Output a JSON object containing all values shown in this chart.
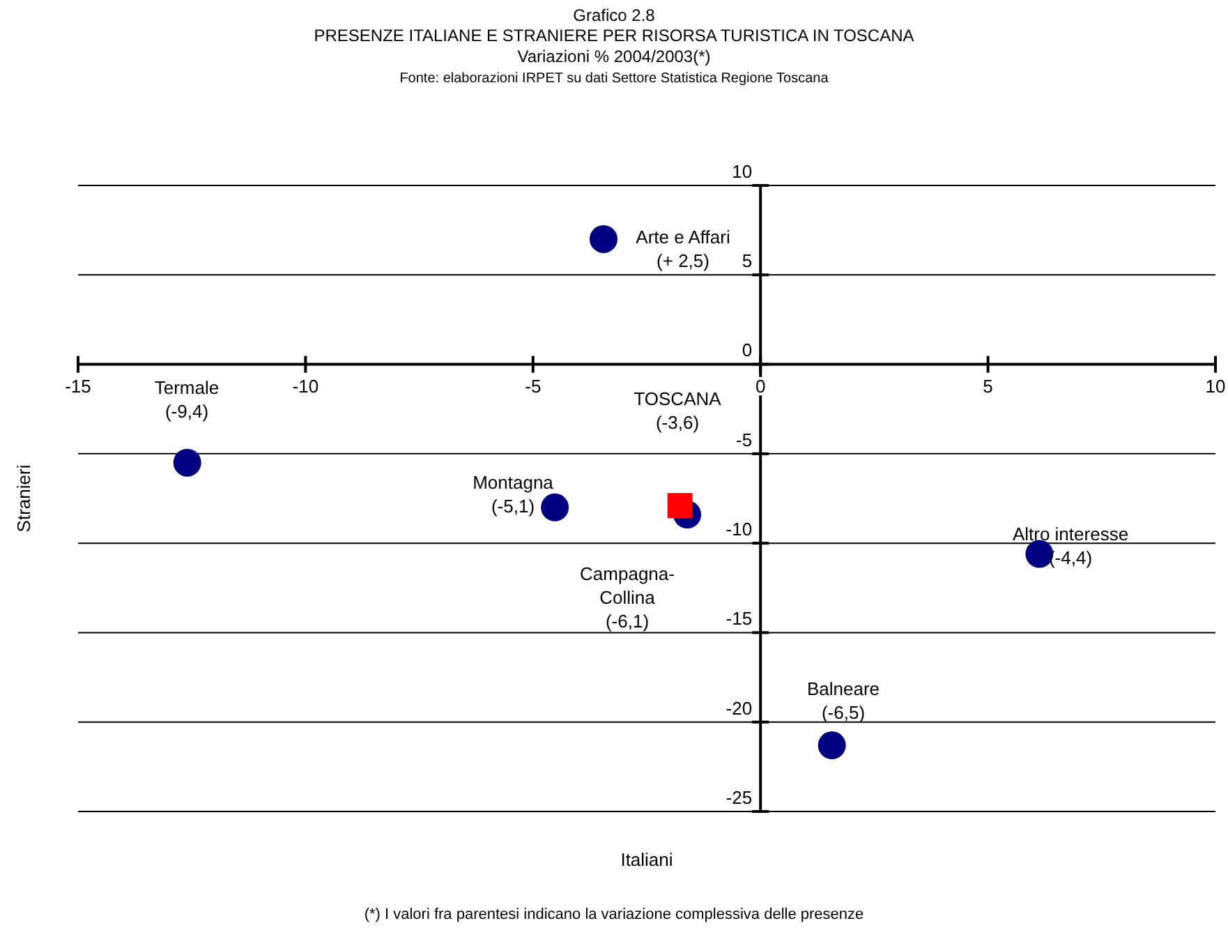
{
  "chart_data": {
    "type": "scatter",
    "title": "Grafico 2.8",
    "subtitle": "PRESENZE ITALIANE E STRANIERE PER RISORSA TURISTICA IN TOSCANA\nVariazioni % 2004/2003(*)",
    "xlabel": "Italiani",
    "ylabel": "Stranieri",
    "series": [
      {
        "color": "#000080",
        "marker": "circle",
        "x": [
          -3.45,
          -12.6,
          -4.52,
          -1.61,
          6.13,
          1.57
        ],
        "values": [
          7.0,
          -5.5,
          -8.0,
          -8.4,
          -10.6,
          -21.3
        ]
      },
      {
        "color": "#ff0000",
        "marker": "square",
        "x": [
          -1.77
        ],
        "values": [
          -7.9
        ]
      }
    ],
    "xlim": [
      -15,
      10
    ],
    "xticks": [
      -15,
      -10,
      -5,
      0,
      5,
      10
    ],
    "ylim": [
      -25,
      10
    ],
    "yticks": [
      10,
      5,
      0,
      -5,
      -10,
      -15,
      -20,
      -25
    ],
    "grid": "y",
    "annotations": [
      "Fonte: elaborazioni IRPET su dati Settore Statistica Regione Toscana",
      "Arte e Affari\n(+ 2,5)",
      "Termale\n(-9,4)",
      "TOSCANA\n(-3,6)",
      "Montagna\n(-5,1)",
      "Campagna-\nCollina\n(-6,1)",
      "Altro interesse\n(-4,4)",
      "Balneare\n(-6,5)",
      "(*) I valori fra parentesi indicano la variazione complessiva delle presenze"
    ]
  }
}
